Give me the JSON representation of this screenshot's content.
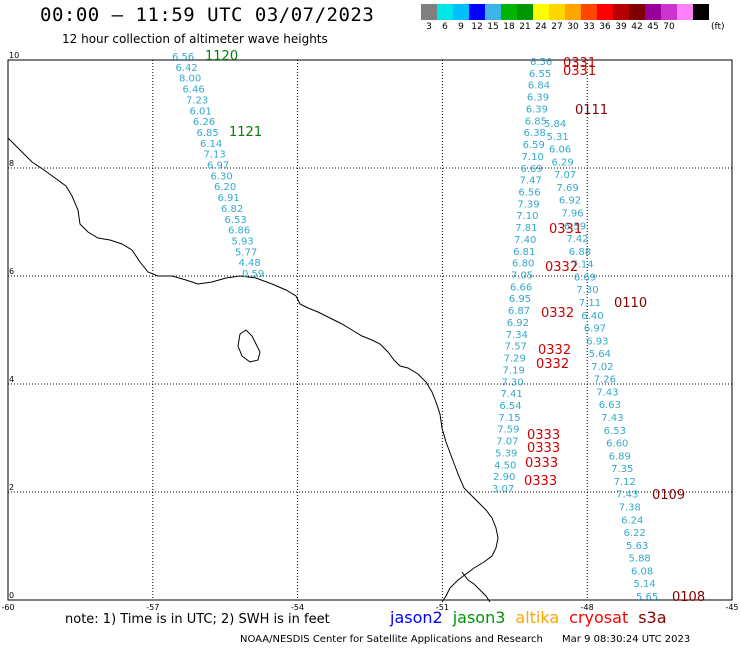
{
  "title": "00:00 – 11:59 UTC 03/07/2023",
  "subtitle": "12 hour collection of altimeter wave heights",
  "legend": {
    "colors": [
      "#808080",
      "#00e6e6",
      "#00bfff",
      "#0000ff",
      "#3cb4e6",
      "#00b400",
      "#009600",
      "#ffff00",
      "#ffd700",
      "#ffa500",
      "#ff4500",
      "#ff0000",
      "#b40000",
      "#800000",
      "#990099",
      "#cc33cc",
      "#ff80ff",
      "#000000"
    ],
    "ticks": [
      "3",
      "6",
      "9",
      "12",
      "15",
      "18",
      "21",
      "24",
      "27",
      "30",
      "33",
      "36",
      "39",
      "42",
      "45",
      "70"
    ],
    "unit": "(ft)"
  },
  "axes": {
    "x_ticks": [
      "-60",
      "-57",
      "-54",
      "-51",
      "-48",
      "-45"
    ],
    "y_ticks": [
      "0",
      "2",
      "4",
      "6",
      "8",
      "10"
    ]
  },
  "passes": [
    {
      "label": "1120",
      "color": "#008000"
    },
    {
      "label": "1121",
      "color": "#008000"
    },
    {
      "label": "0331",
      "color": "#cc0000"
    },
    {
      "label": "0331",
      "color": "#cc0000"
    },
    {
      "label": "0111",
      "color": "#800000"
    },
    {
      "label": "0331",
      "color": "#cc0000"
    },
    {
      "label": "0332",
      "color": "#cc0000"
    },
    {
      "label": "0110",
      "color": "#800000"
    },
    {
      "label": "0332",
      "color": "#cc0000"
    },
    {
      "label": "0332",
      "color": "#cc0000"
    },
    {
      "label": "0332",
      "color": "#cc0000"
    },
    {
      "label": "0333",
      "color": "#cc0000"
    },
    {
      "label": "0333",
      "color": "#cc0000"
    },
    {
      "label": "0333",
      "color": "#cc0000"
    },
    {
      "label": "0333",
      "color": "#cc0000"
    },
    {
      "label": "0109",
      "color": "#800000"
    },
    {
      "label": "0108",
      "color": "#800000"
    }
  ],
  "track_left": [
    "6.56",
    "6.42",
    "8.00",
    "6.46",
    "7.23",
    "6.01",
    "6.26",
    "6.85",
    "6.14",
    "7.13",
    "6.97",
    "6.30",
    "6.20",
    "6.91",
    "6.82",
    "6.53",
    "6.86",
    "5.93",
    "5.77",
    "4.48",
    "0.59"
  ],
  "track_mid": [
    "6.56",
    "6.55",
    "6.84",
    "6.39",
    "6.39",
    "6.85",
    "6.38",
    "6.59",
    "7.10",
    "6.69",
    "7.47",
    "6.56",
    "7.39",
    "7.10",
    "7.81",
    "7.40",
    "6.81",
    "6.80",
    "7.05",
    "6.66",
    "6.95",
    "6.87",
    "6.92",
    "7.34",
    "7.57",
    "7.29",
    "7.19",
    "7.30",
    "7.41",
    "6.54",
    "7.15",
    "7.59",
    "7.07",
    "5.39",
    "4.50",
    "2.90",
    "3.07"
  ],
  "track_right": [
    "5.84",
    "5.31",
    "6.06",
    "6.29",
    "7.07",
    "7.69",
    "6.92",
    "7.96",
    "6.59",
    "7.42",
    "6.88",
    "7.14",
    "6.69",
    "7.30",
    "7.11",
    "6.40",
    "6.97",
    "6.93",
    "5.64",
    "7.02",
    "7.26",
    "7.43",
    "6.63",
    "7.43",
    "6.53",
    "6.60",
    "6.89",
    "7.35",
    "7.12",
    "7.43",
    "7.38",
    "6.24",
    "6.22",
    "5.63",
    "5.88",
    "6.08",
    "5.14",
    "5.65"
  ],
  "note": "note: 1) Time is in UTC; 2) SWH is in feet",
  "satellites": [
    {
      "name": "jason2",
      "color": "#0000ff"
    },
    {
      "name": "jason3",
      "color": "#009600"
    },
    {
      "name": "altika",
      "color": "#ffa500"
    },
    {
      "name": "cryosat",
      "color": "#ff0000"
    },
    {
      "name": "s3a",
      "color": "#800000"
    }
  ],
  "footer": {
    "org": "NOAA/NESDIS Center for Satellite Applications and Research",
    "timestamp": "Mar  9 08:30:24 UTC 2023"
  }
}
